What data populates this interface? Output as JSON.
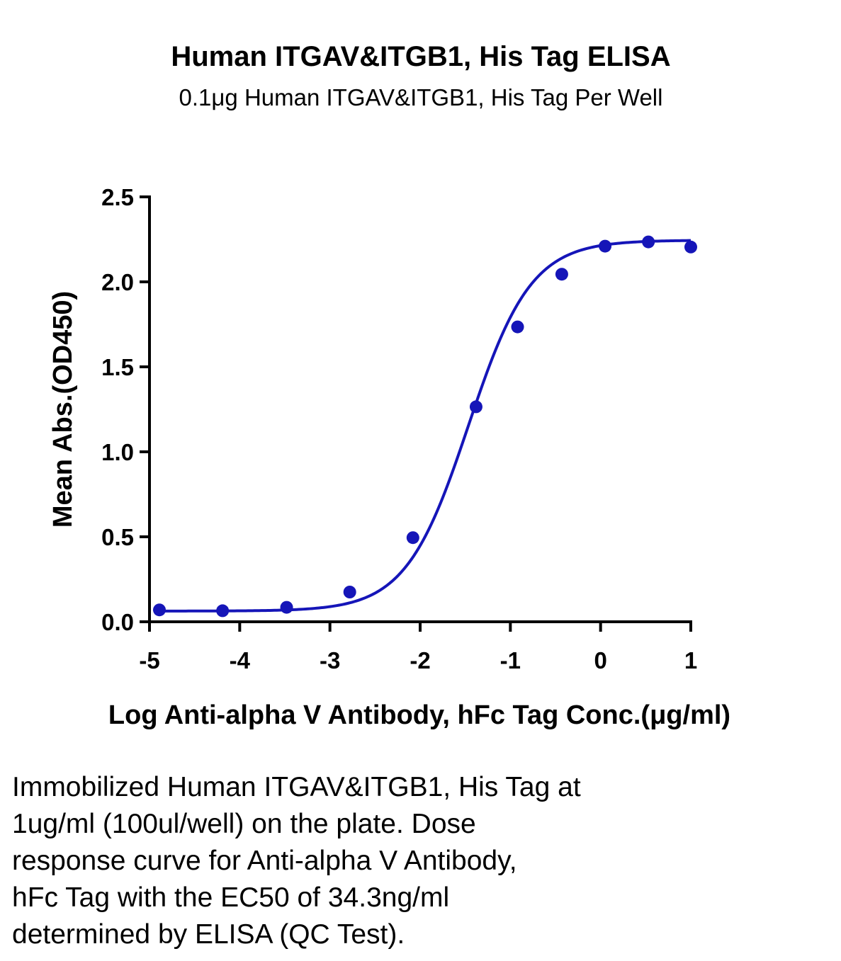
{
  "chart_data": {
    "type": "scatter",
    "title": "Human ITGAV&ITGB1, His Tag ELISA",
    "subtitle": "0.1μg Human ITGAV&ITGB1, His Tag Per Well",
    "xlabel": "Log Anti-alpha V Antibody, hFc Tag Conc.(μg/ml)",
    "ylabel": "Mean Abs.(OD450)",
    "xlim": [
      -5,
      1
    ],
    "ylim": [
      0,
      2.5
    ],
    "x_ticks": [
      -5,
      -4,
      -3,
      -2,
      -1,
      0,
      1
    ],
    "x_tick_labels": [
      "-5",
      "-4",
      "-3",
      "-2",
      "-1",
      "0",
      "1"
    ],
    "y_ticks": [
      0,
      0.5,
      1.0,
      1.5,
      2.0,
      2.5
    ],
    "y_tick_labels": [
      "0.0",
      "0.5",
      "1.0",
      "1.5",
      "2.0",
      "2.5"
    ],
    "grid": false,
    "series": [
      {
        "x": [
          -4.89,
          -4.19,
          -3.48,
          -2.78,
          -2.08,
          -1.38,
          -0.92,
          -0.43,
          0.05,
          0.53,
          1.0
        ],
        "y": [
          0.07,
          0.065,
          0.085,
          0.175,
          0.495,
          1.265,
          1.735,
          2.045,
          2.21,
          2.235,
          2.205
        ],
        "color": "#1515B8",
        "fit": {
          "model": "4PL",
          "bottom": 0.063,
          "top": 2.245,
          "log_ec50": -1.465,
          "hill_slope": 1.25,
          "color": "#1515B8"
        }
      }
    ]
  },
  "caption": [
    "Immobilized Human ITGAV&ITGB1, His Tag at",
    "1ug/ml (100ul/well) on the plate. Dose",
    "response curve for Anti-alpha V Antibody,",
    "hFc Tag with the EC50 of 34.3ng/ml",
    "determined by ELISA (QC Test)."
  ]
}
